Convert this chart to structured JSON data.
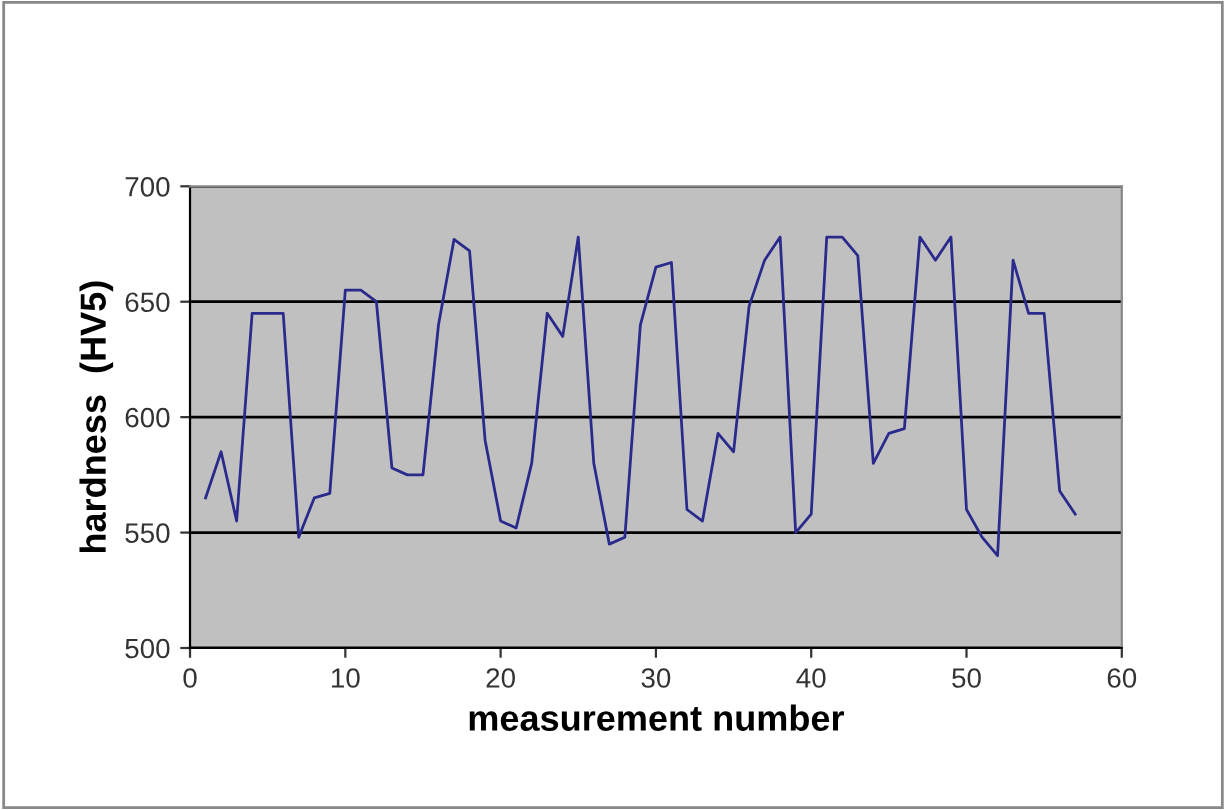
{
  "chart_data": {
    "type": "line",
    "xlabel": "measurement number",
    "ylabel": "hardness  (HV5)",
    "x": [
      1,
      2,
      3,
      4,
      5,
      6,
      7,
      8,
      9,
      10,
      11,
      12,
      13,
      14,
      15,
      16,
      17,
      18,
      19,
      20,
      21,
      22,
      23,
      24,
      25,
      26,
      27,
      28,
      29,
      30,
      31,
      32,
      33,
      34,
      35,
      36,
      37,
      38,
      39,
      40,
      41,
      42,
      43,
      44,
      45,
      46,
      47,
      48,
      49,
      50,
      51,
      52,
      53,
      54,
      55,
      56,
      57
    ],
    "series": [
      {
        "color": "#2a2a8c",
        "values": [
          565,
          585,
          555,
          645,
          645,
          645,
          548,
          565,
          567,
          655,
          655,
          650,
          578,
          575,
          575,
          640,
          677,
          672,
          590,
          555,
          552,
          580,
          645,
          635,
          678,
          580,
          545,
          548,
          640,
          665,
          667,
          560,
          555,
          593,
          585,
          648,
          668,
          678,
          550,
          558,
          678,
          678,
          670,
          580,
          593,
          595,
          678,
          668,
          678,
          560,
          548,
          540,
          668,
          645,
          645,
          568,
          558
        ]
      }
    ],
    "xlim": [
      0,
      60
    ],
    "xticks": [
      0,
      10,
      20,
      30,
      40,
      50,
      60
    ],
    "ylim": [
      500,
      700
    ],
    "yticks": [
      500,
      550,
      600,
      650,
      700
    ],
    "grid": "y",
    "marker": "none",
    "line_style": "solid"
  }
}
